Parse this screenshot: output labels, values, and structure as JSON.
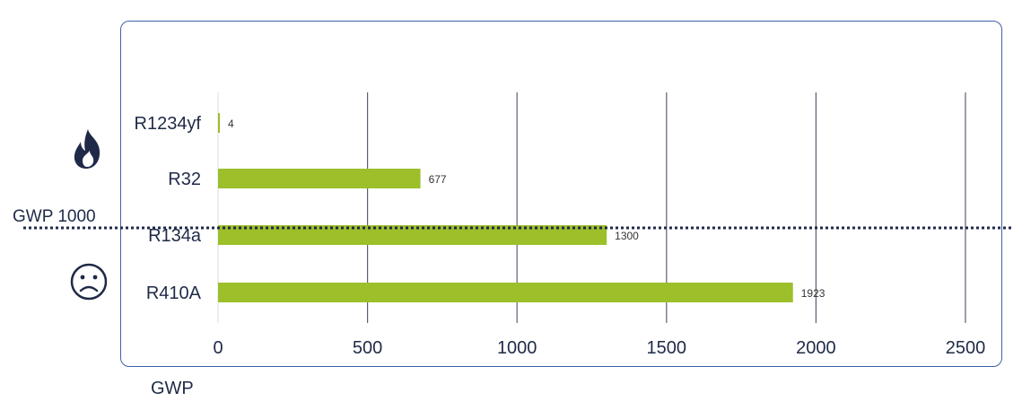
{
  "threshold": {
    "label": "GWP 1000",
    "value": 1000
  },
  "x_axis_title": "GWP",
  "icons": {
    "top": "flame-icon",
    "bottom": "sad-face-icon"
  },
  "colors": {
    "bar": "#9cbf2a",
    "frame": "#3d62a6",
    "grid": "#5a5f78",
    "threshold_line": "#1f2a48",
    "text": "#1f2a48"
  },
  "chart_data": {
    "type": "bar",
    "orientation": "horizontal",
    "categories": [
      "R1234yf",
      "R32",
      "R134a",
      "R410A"
    ],
    "values": [
      4,
      677,
      1300,
      1923
    ],
    "data_labels": [
      "4",
      "677",
      "1300",
      "1923"
    ],
    "xlabel": "GWP",
    "ylabel": "",
    "xlim": [
      0,
      2500
    ],
    "xticks": [
      "0",
      "500",
      "1000",
      "1500",
      "2000",
      "2500"
    ],
    "grid": "vertical",
    "legend": "none",
    "reference_line": {
      "value": 1000,
      "label": "GWP 1000",
      "style": "dotted"
    }
  }
}
